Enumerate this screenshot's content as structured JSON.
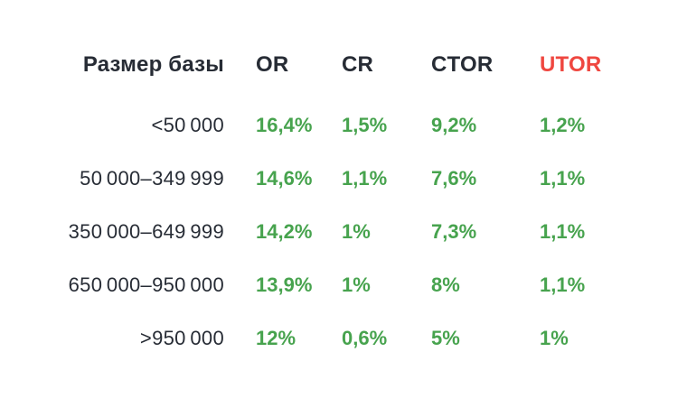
{
  "colors": {
    "background": "#ffffff",
    "text_dark": "#272c35",
    "value_green": "#47a34e",
    "utor_red": "#ef4740"
  },
  "table": {
    "header": {
      "label": "Размер базы",
      "columns": [
        "OR",
        "CR",
        "CTOR",
        "UTOR"
      ]
    },
    "rows": [
      {
        "label": "<50 000",
        "values": [
          "16,4%",
          "1,5%",
          "9,2%",
          "1,2%"
        ]
      },
      {
        "label": "50 000–349 999",
        "values": [
          "14,6%",
          "1,1%",
          "7,6%",
          "1,1%"
        ]
      },
      {
        "label": "350 000–649 999",
        "values": [
          "14,2%",
          "1%",
          "7,3%",
          "1,1%"
        ]
      },
      {
        "label": "650 000–950 000",
        "values": [
          "13,9%",
          "1%",
          "8%",
          "1,1%"
        ]
      },
      {
        "label": ">950 000",
        "values": [
          "12%",
          "0,6%",
          "5%",
          "1%"
        ]
      }
    ]
  },
  "chart_data": {
    "type": "table",
    "title": "",
    "columns": [
      "Размер базы",
      "OR",
      "CR",
      "CTOR",
      "UTOR"
    ],
    "rows": [
      [
        "<50 000",
        "16,4%",
        "1,5%",
        "9,2%",
        "1,2%"
      ],
      [
        "50 000–349 999",
        "14,6%",
        "1,1%",
        "7,6%",
        "1,1%"
      ],
      [
        "350 000–649 999",
        "14,2%",
        "1%",
        "7,3%",
        "1,1%"
      ],
      [
        "650 000–950 000",
        "13,9%",
        "1%",
        "8%",
        "1,1%"
      ],
      [
        ">950 000",
        "12%",
        "0,6%",
        "5%",
        "1%"
      ]
    ],
    "notes": {
      "value_columns_color": "#47a34e",
      "highlighted_header": "UTOR",
      "highlighted_header_color": "#ef4740"
    }
  }
}
